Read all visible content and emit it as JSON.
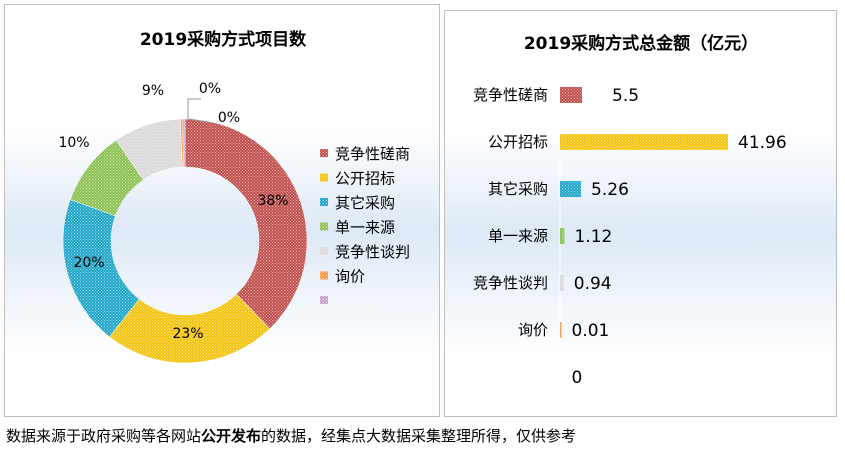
{
  "chart_data": [
    {
      "type": "pie",
      "title": "2019采购方式项目数",
      "categories": [
        "竞争性磋商",
        "公开招标",
        "其它采购",
        "单一来源",
        "竞争性谈判",
        "询价",
        ""
      ],
      "values": [
        38,
        23,
        20,
        10,
        9,
        0.3,
        0.3
      ],
      "data_labels": [
        "38%",
        "23%",
        "20%",
        "10%",
        "9%",
        "0%",
        "0%"
      ],
      "legend_position": "right",
      "donut": true
    },
    {
      "type": "bar",
      "orientation": "horizontal",
      "title": "2019采购方式总金额（亿元）",
      "categories": [
        "竞争性磋商",
        "公开招标",
        "其它采购",
        "单一来源",
        "竞争性谈判",
        "询价",
        ""
      ],
      "values": [
        5.5,
        41.96,
        5.26,
        1.12,
        0.94,
        0.01,
        0
      ],
      "data_labels": [
        "5.5",
        "41.96",
        "5.26",
        "1.12",
        "0.94",
        "0.01",
        "0"
      ]
    }
  ],
  "colors": [
    "#c0504d",
    "#f2c40f",
    "#1fa6c9",
    "#8cc152",
    "#d9d9d9",
    "#f79646",
    "#c9a0c9"
  ],
  "footer": {
    "part1": "数据来源于政府采购等各网站",
    "bold": "公开发布",
    "part2": "的数据，经集点大数据采集整理所得，仅供参考"
  }
}
